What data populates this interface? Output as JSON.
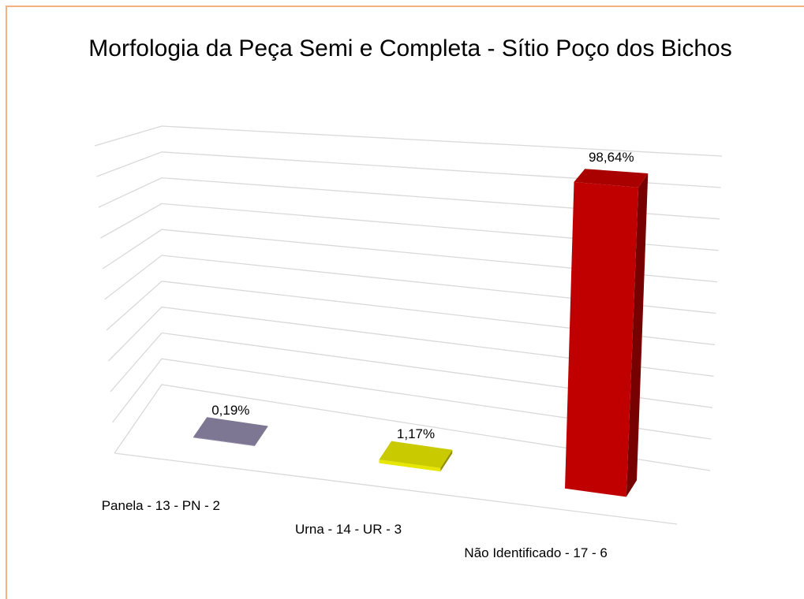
{
  "chart_data": {
    "type": "bar3d",
    "title": "Morfologia da Peça Semi e Completa - Sítio Poço dos Bichos",
    "categories": [
      "Panela - 13 - PN - 2",
      "Urna - 14 - UR - 3",
      "Não Identificado - 17 - 6"
    ],
    "values": [
      0.19,
      1.17,
      98.64
    ],
    "value_labels": [
      "0,19%",
      "1,17%",
      "98,64%"
    ],
    "colors": [
      "#8e87a8",
      "#e6e600",
      "#c00000"
    ],
    "ylim": [
      0,
      100
    ],
    "yticks": [
      0,
      10,
      20,
      30,
      40,
      50,
      60,
      70,
      80,
      90,
      100
    ],
    "grid": true
  }
}
